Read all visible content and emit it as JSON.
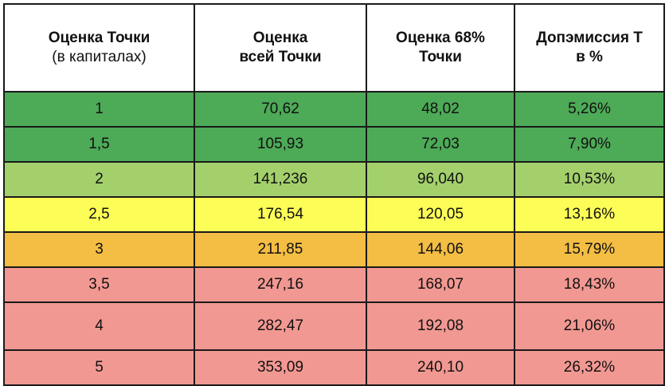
{
  "colors": {
    "dark_green": "#4daa57",
    "light_green": "#a3d06b",
    "yellow": "#fdfd57",
    "orange": "#f4bd43",
    "pink": "#f29892"
  },
  "table": {
    "headers": [
      {
        "title": "Оценка Точки",
        "subtitle": "(в капиталах)"
      },
      {
        "title": "Оценка",
        "subtitle": "всей Точки"
      },
      {
        "title": "Оценка 68%",
        "subtitle": "Точки"
      },
      {
        "title": "Допэмиссия Т",
        "subtitle": "в %"
      }
    ],
    "rows": [
      {
        "cells": [
          "1",
          "70,62",
          "48,02",
          "5,26%"
        ],
        "color": "#4daa57"
      },
      {
        "cells": [
          "1,5",
          "105,93",
          "72,03",
          "7,90%"
        ],
        "color": "#4daa57"
      },
      {
        "cells": [
          "2",
          "141,236",
          "96,040",
          "10,53%"
        ],
        "color": "#a3d06b"
      },
      {
        "cells": [
          "2,5",
          "176,54",
          "120,05",
          "13,16%"
        ],
        "color": "#fdfd57"
      },
      {
        "cells": [
          "3",
          "211,85",
          "144,06",
          "15,79%"
        ],
        "color": "#f4bd43"
      },
      {
        "cells": [
          "3,5",
          "247,16",
          "168,07",
          "18,43%"
        ],
        "color": "#f29892"
      },
      {
        "cells": [
          "4",
          "282,47",
          "192,08",
          "21,06%"
        ],
        "color": "#f29892"
      },
      {
        "cells": [
          "5",
          "353,09",
          "240,10",
          "26,32%"
        ],
        "color": "#f29892"
      }
    ]
  }
}
